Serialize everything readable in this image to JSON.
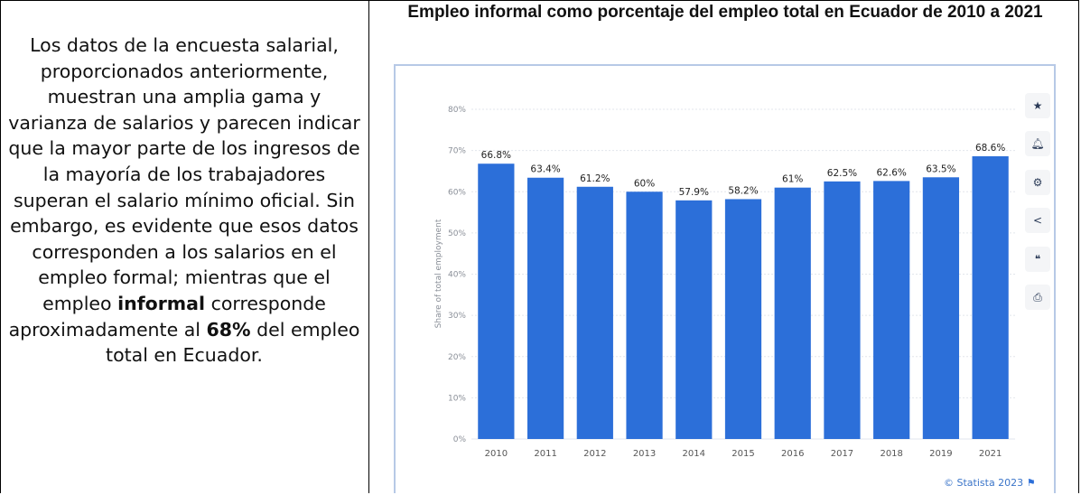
{
  "left_panel": {
    "paragraph_start": "Los datos de la encuesta salarial, proporcionados anteriormente, muestran una amplia gama y varianza de salarios y parecen indicar que la mayor parte de los ingresos de la mayoría de los trabajadores superan el salario mínimo oficial. Sin embargo, es evidente que esos datos corresponden a los salarios en el empleo formal; mientras que el empleo",
    "bold_word": "informal",
    "paragraph_mid": "corresponde aproximadamente al",
    "bold_percent": "68%",
    "paragraph_end": "del empleo total en Ecuador."
  },
  "chart_data": {
    "type": "bar",
    "title": "Empleo informal como porcentaje del empleo total en Ecuador de 2010 a 2021",
    "ylabel": "Share of total employment",
    "xlabel": "",
    "categories": [
      "2010",
      "2011",
      "2012",
      "2013",
      "2014",
      "2015",
      "2016",
      "2017",
      "2018",
      "2019",
      "2021"
    ],
    "values": [
      66.8,
      63.4,
      61.2,
      60,
      57.9,
      58.2,
      61,
      62.5,
      62.6,
      63.5,
      68.6
    ],
    "value_labels": [
      "66.8%",
      "63.4%",
      "61.2%",
      "60%",
      "57.9%",
      "58.2%",
      "61%",
      "62.5%",
      "62.6%",
      "63.5%",
      "68.6%"
    ],
    "ylim": [
      0,
      80
    ],
    "yticks": [
      "0%",
      "10%",
      "20%",
      "30%",
      "40%",
      "50%",
      "60%",
      "70%",
      "80%"
    ],
    "grid": true,
    "bar_color": "#2c6fd9",
    "credit": "© Statista 2023"
  },
  "toolbar": {
    "icons": [
      "star-icon",
      "bell-icon",
      "gear-icon",
      "share-icon",
      "quote-icon",
      "print-icon"
    ]
  }
}
